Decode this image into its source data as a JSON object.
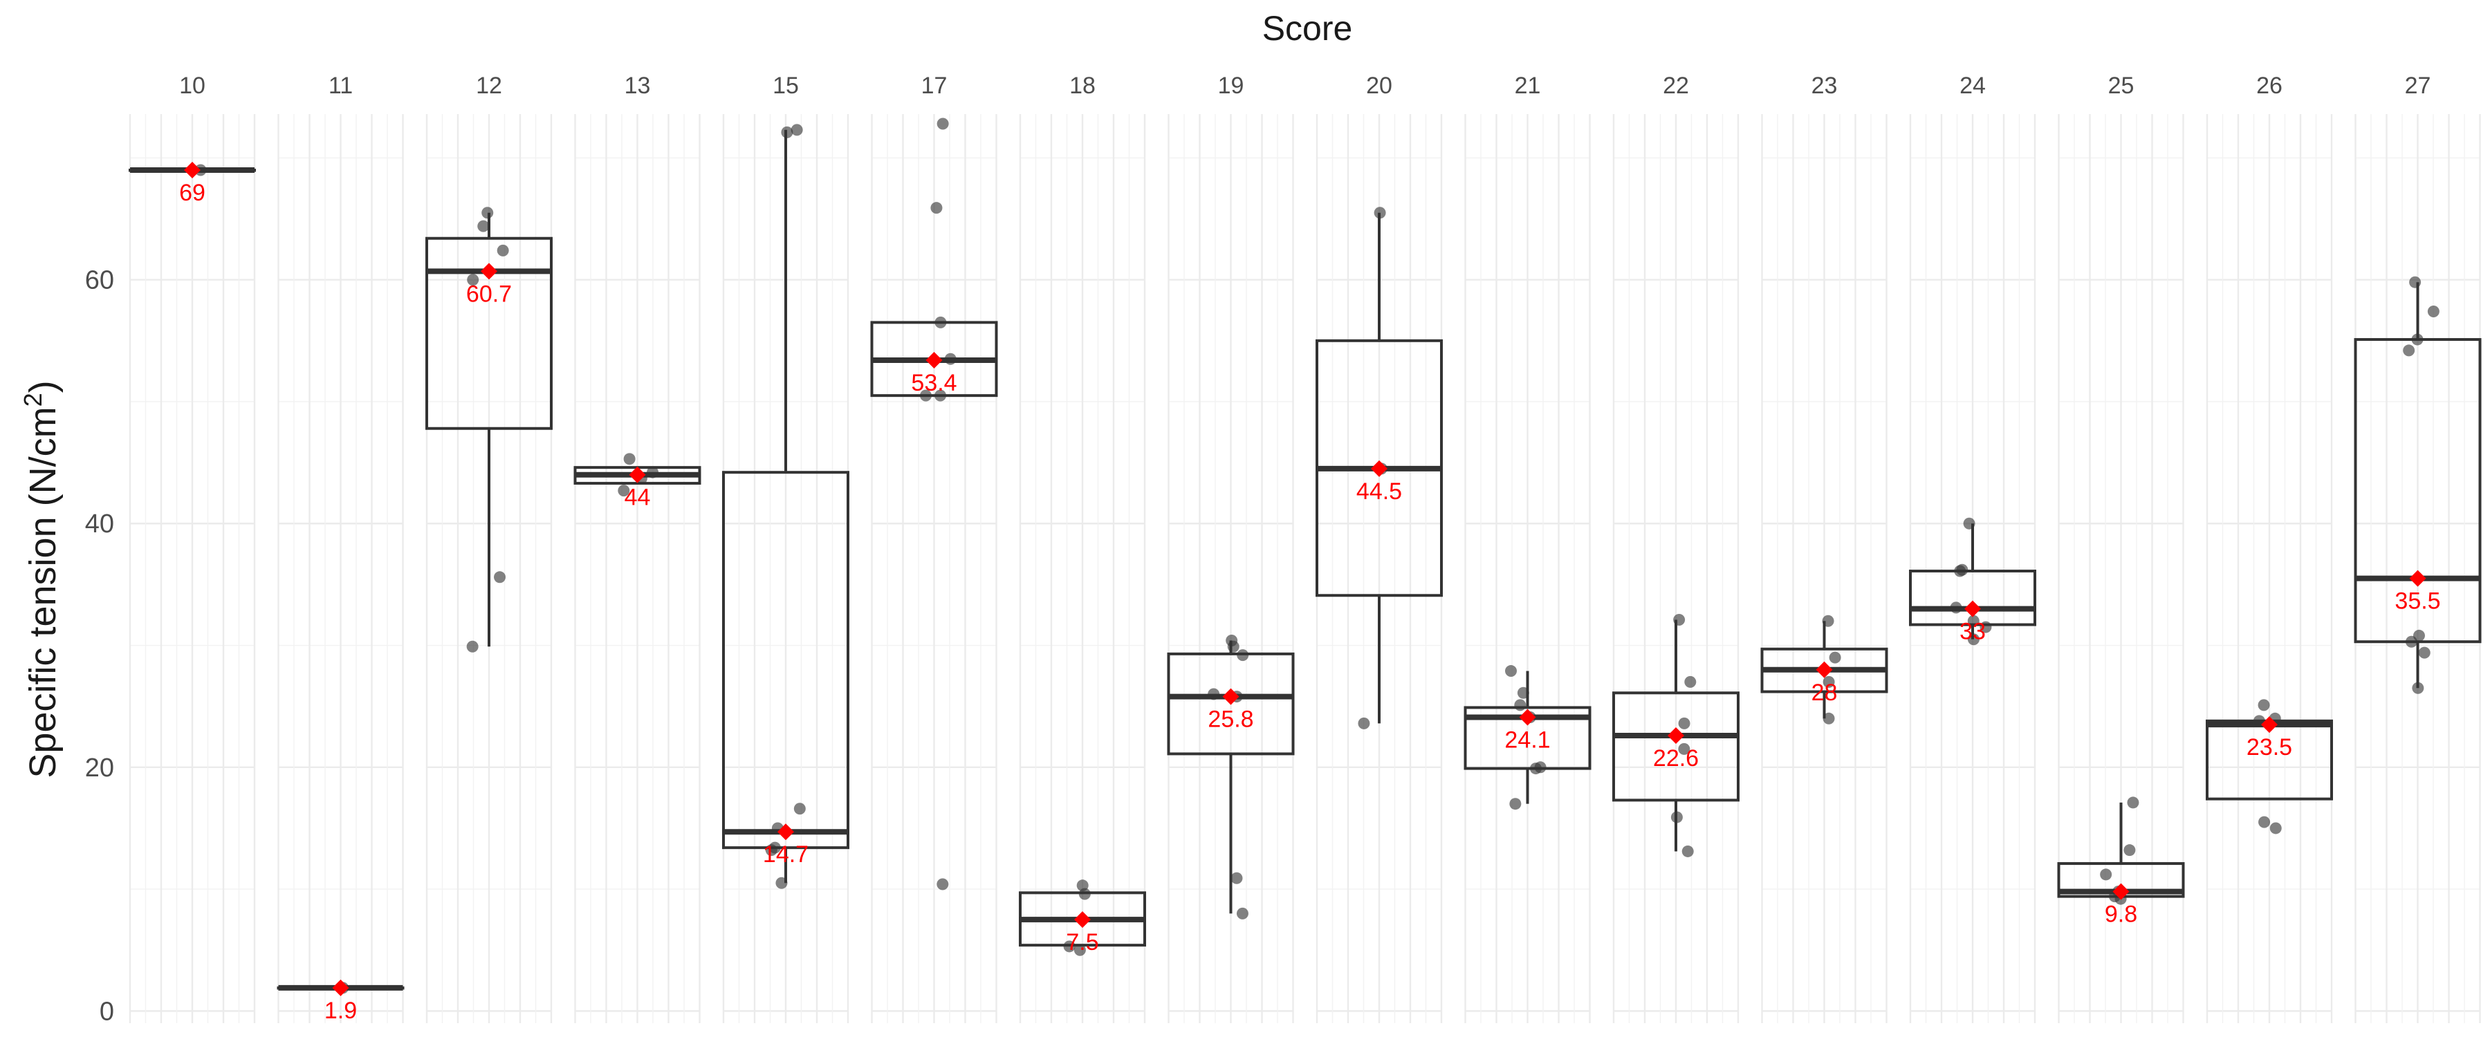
{
  "chart_data": {
    "type": "box",
    "facet_title": "Score",
    "ylabel": "Specific tension  (N/cm",
    "ylabel_sup": "2",
    "ylabel_close": ")",
    "ylim": [
      -1,
      77
    ],
    "yticks": [
      0,
      20,
      40,
      60
    ],
    "grid": true,
    "mean_color": "#ff0000",
    "point_color": "#333333",
    "box_color": "#333333",
    "panels": [
      {
        "label": "10",
        "q1": 69,
        "median": 69,
        "q3": 69,
        "whisker_low": 69,
        "whisker_high": 69,
        "mean": 69,
        "mean_label": "69",
        "points": [
          69
        ]
      },
      {
        "label": "11",
        "q1": 1.9,
        "median": 1.9,
        "q3": 1.9,
        "whisker_low": 1.9,
        "whisker_high": 1.9,
        "mean": 1.9,
        "mean_label": "1.9",
        "points": [
          1.9
        ]
      },
      {
        "label": "12",
        "q1": 47.8,
        "median": 60.7,
        "q3": 63.4,
        "whisker_low": 29.9,
        "whisker_high": 65.5,
        "mean": 60.7,
        "mean_label": "60.7",
        "points": [
          65.5,
          64.4,
          62.4,
          60.0,
          35.6,
          29.9
        ]
      },
      {
        "label": "13",
        "q1": 43.3,
        "median": 44.0,
        "q3": 44.6,
        "whisker_low": 43.3,
        "whisker_high": 44.6,
        "mean": 44,
        "mean_label": "44",
        "points": [
          45.3,
          44.2,
          43.7,
          42.7
        ]
      },
      {
        "label": "15",
        "q1": 13.4,
        "median": 14.7,
        "q3": 44.2,
        "whisker_low": 10.5,
        "whisker_high": 72.3,
        "mean": 14.7,
        "mean_label": "14.7",
        "points": [
          72.3,
          72.1,
          16.6,
          15.0,
          13.4,
          13.2,
          10.5
        ]
      },
      {
        "label": "17",
        "q1": 50.5,
        "median": 53.4,
        "q3": 56.5,
        "whisker_low": 50.5,
        "whisker_high": 56.5,
        "mean": 53.4,
        "mean_label": "53.4",
        "points": [
          72.8,
          65.9,
          56.5,
          53.5,
          50.5,
          50.5,
          10.4
        ]
      },
      {
        "label": "18",
        "q1": 5.4,
        "median": 7.5,
        "q3": 9.7,
        "whisker_low": 5.4,
        "whisker_high": 9.7,
        "mean": 7.5,
        "mean_label": "7.5",
        "points": [
          10.3,
          9.6,
          5.3,
          5.0
        ]
      },
      {
        "label": "19",
        "q1": 21.1,
        "median": 25.8,
        "q3": 29.3,
        "whisker_low": 8.0,
        "whisker_high": 30.4,
        "mean": 25.8,
        "mean_label": "25.8",
        "points": [
          30.4,
          29.9,
          29.2,
          26.0,
          25.8,
          10.9,
          8.0
        ]
      },
      {
        "label": "20",
        "q1": 34.1,
        "median": 44.5,
        "q3": 55.0,
        "whisker_low": 23.6,
        "whisker_high": 65.5,
        "mean": 44.5,
        "mean_label": "44.5",
        "points": [
          65.5,
          44.5,
          23.6
        ]
      },
      {
        "label": "21",
        "q1": 19.9,
        "median": 24.1,
        "q3": 24.9,
        "whisker_low": 17.0,
        "whisker_high": 27.9,
        "mean": 24.1,
        "mean_label": "24.1",
        "points": [
          27.9,
          26.1,
          25.1,
          24.1,
          20.0,
          19.9,
          17.0
        ]
      },
      {
        "label": "22",
        "q1": 17.3,
        "median": 22.6,
        "q3": 26.1,
        "whisker_low": 13.1,
        "whisker_high": 32.1,
        "mean": 22.6,
        "mean_label": "22.6",
        "points": [
          32.1,
          27.0,
          23.6,
          21.5,
          15.9,
          13.1
        ]
      },
      {
        "label": "23",
        "q1": 26.2,
        "median": 28.0,
        "q3": 29.7,
        "whisker_low": 24.0,
        "whisker_high": 32.0,
        "mean": 28,
        "mean_label": "28",
        "points": [
          32.0,
          29.0,
          27.0,
          24.0
        ]
      },
      {
        "label": "24",
        "q1": 31.7,
        "median": 33.0,
        "q3": 36.1,
        "whisker_low": 30.5,
        "whisker_high": 40.0,
        "mean": 33,
        "mean_label": "33",
        "points": [
          40.0,
          36.2,
          36.1,
          33.1,
          32.0,
          31.5,
          30.5
        ]
      },
      {
        "label": "25",
        "q1": 9.4,
        "median": 9.8,
        "q3": 12.1,
        "whisker_low": 9.4,
        "whisker_high": 17.1,
        "mean": 9.8,
        "mean_label": "9.8",
        "points": [
          17.1,
          13.2,
          11.2,
          9.8,
          9.4,
          9.2
        ]
      },
      {
        "label": "26",
        "q1": 17.4,
        "median": 23.5,
        "q3": 23.8,
        "whisker_low": 17.4,
        "whisker_high": 23.8,
        "mean": 23.5,
        "mean_label": "23.5",
        "points": [
          25.1,
          24.0,
          23.8,
          15.5,
          15.0
        ]
      },
      {
        "label": "27",
        "q1": 30.3,
        "median": 35.5,
        "q3": 55.1,
        "whisker_low": 26.5,
        "whisker_high": 59.8,
        "mean": 35.5,
        "mean_label": "35.5",
        "points": [
          59.8,
          57.4,
          55.1,
          54.2,
          30.8,
          30.3,
          29.4,
          26.5
        ]
      }
    ]
  }
}
